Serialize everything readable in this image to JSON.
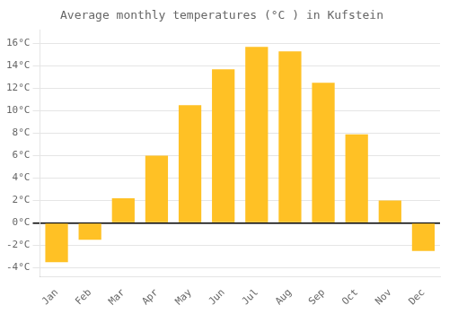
{
  "chart_data": {
    "type": "bar",
    "title": "Average monthly temperatures (°C ) in Kufstein",
    "categories": [
      "Jan",
      "Feb",
      "Mar",
      "Apr",
      "May",
      "Jun",
      "Jul",
      "Aug",
      "Sep",
      "Oct",
      "Nov",
      "Dec"
    ],
    "values": [
      -3.5,
      -1.5,
      2.2,
      6.0,
      10.5,
      13.7,
      15.7,
      15.3,
      12.5,
      7.9,
      2.0,
      -2.5
    ],
    "color": "#FFC125",
    "ylim": [
      -4.8,
      17.2
    ],
    "yticks": [
      {
        "value": -4,
        "label": "-4°C"
      },
      {
        "value": -2,
        "label": "-2°C"
      },
      {
        "value": 0,
        "label": "0°C"
      },
      {
        "value": 2,
        "label": "2°C"
      },
      {
        "value": 4,
        "label": "4°C"
      },
      {
        "value": 6,
        "label": "6°C"
      },
      {
        "value": 8,
        "label": "8°C"
      },
      {
        "value": 10,
        "label": "10°C"
      },
      {
        "value": 12,
        "label": "12°C"
      },
      {
        "value": 14,
        "label": "14°C"
      },
      {
        "value": 16,
        "label": "16°C"
      }
    ],
    "grid": true
  }
}
